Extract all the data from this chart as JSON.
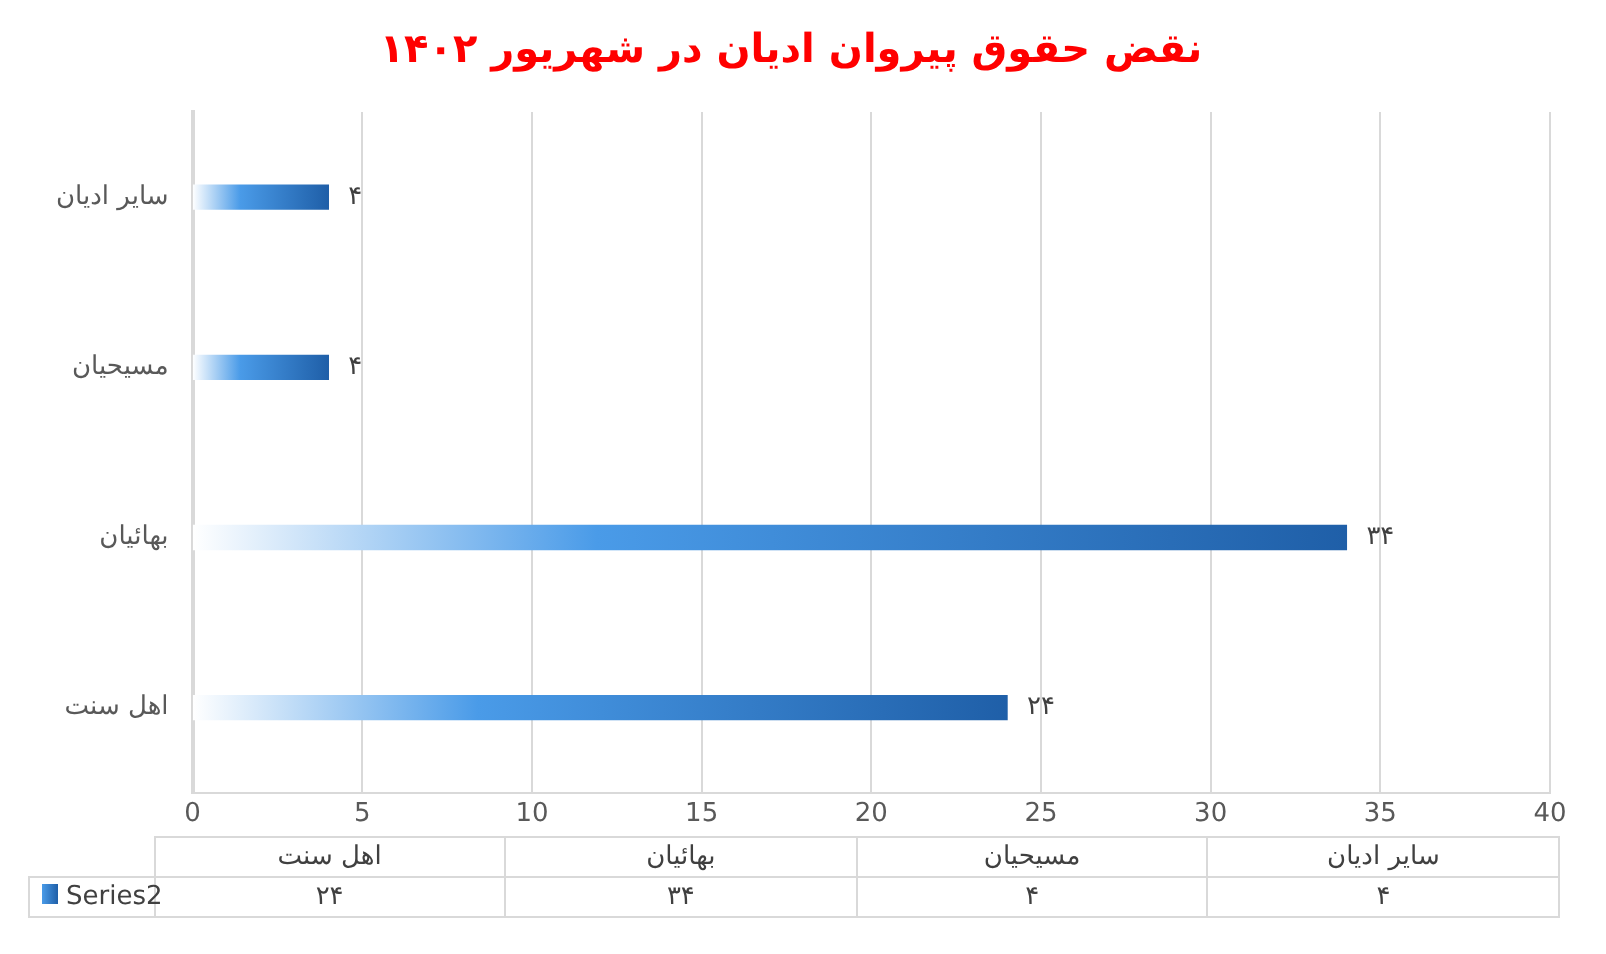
{
  "chart_data": {
    "type": "bar",
    "orientation": "horizontal",
    "title": "نقض حقوق پیروان ادیان در شهریور ۱۴۰۲",
    "categories": [
      "سایر ادیان",
      "مسیحیان",
      "بهائیان",
      "اهل سنت"
    ],
    "series": [
      {
        "name": "Series2",
        "color": "#1f5fa8",
        "values": [
          4,
          4,
          34,
          24
        ],
        "value_labels": [
          "۴",
          "۴",
          "۳۴",
          "۲۴"
        ]
      }
    ],
    "xlim": [
      0,
      40
    ],
    "xticks": [
      0,
      5,
      10,
      15,
      20,
      25,
      30,
      35,
      40
    ],
    "grid": "x",
    "legend": "bottom"
  }
}
